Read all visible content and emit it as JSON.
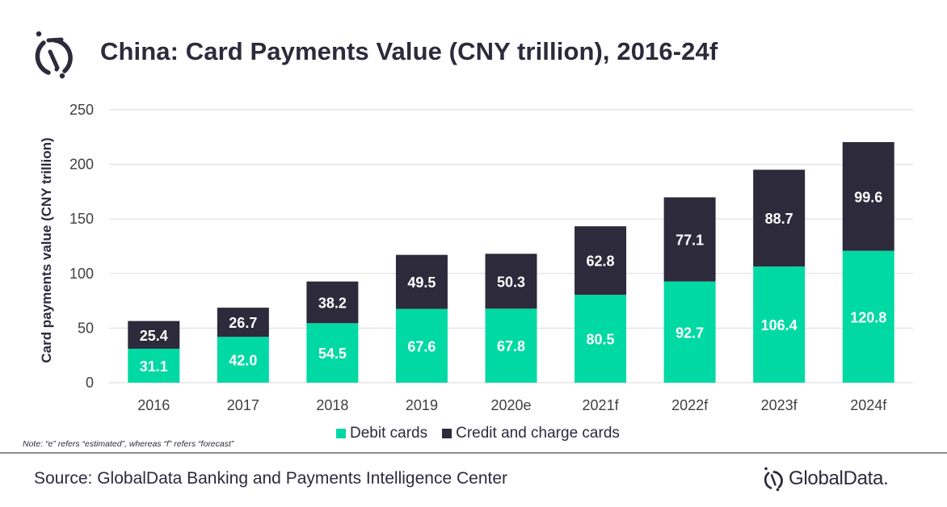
{
  "header": {
    "title": "China: Card Payments Value (CNY trillion), 2016-24f",
    "logo_icon": "globaldata-mark-icon"
  },
  "colors": {
    "debit": "#00d9a3",
    "credit": "#2d2a3b",
    "text": "#2d2a3b",
    "grid": "#d9d9d9"
  },
  "chart_data": {
    "type": "bar",
    "stacked": true,
    "title": "China: Card Payments Value (CNY trillion), 2016-24f",
    "xlabel": "",
    "ylabel": "Card payments value (CNY trillion)",
    "ylim": [
      0,
      250
    ],
    "yticks": [
      0,
      50,
      100,
      150,
      200,
      250
    ],
    "grid": true,
    "legend_position": "bottom",
    "categories": [
      "2016",
      "2017",
      "2018",
      "2019",
      "2020e",
      "2021f",
      "2022f",
      "2023f",
      "2024f"
    ],
    "series": [
      {
        "name": "Debit cards",
        "color": "#00d9a3",
        "values": [
          31.1,
          42.0,
          54.5,
          67.6,
          67.8,
          80.5,
          92.7,
          106.4,
          120.8
        ],
        "labels": [
          "31.1",
          "42.0",
          "54.5",
          "67.6",
          "67.8",
          "80.5",
          "92.7",
          "106.4",
          "120.8"
        ]
      },
      {
        "name": "Credit and charge cards",
        "color": "#2d2a3b",
        "values": [
          25.4,
          26.7,
          38.2,
          49.5,
          50.3,
          62.8,
          77.1,
          88.7,
          99.6
        ],
        "labels": [
          "25.4",
          "26.7",
          "38.2",
          "49.5",
          "50.3",
          "62.8",
          "77.1",
          "88.7",
          "99.6"
        ]
      }
    ]
  },
  "legend": {
    "items": [
      {
        "label": "Debit cards",
        "color": "#00d9a3"
      },
      {
        "label": "Credit and charge cards",
        "color": "#2d2a3b"
      }
    ]
  },
  "footer": {
    "note": "Note: “e” refers “estimated”,  whereas “f” refers “forecast”",
    "source": "Source: GlobalData Banking and Payments Intelligence Center",
    "brand": "GlobalData."
  }
}
